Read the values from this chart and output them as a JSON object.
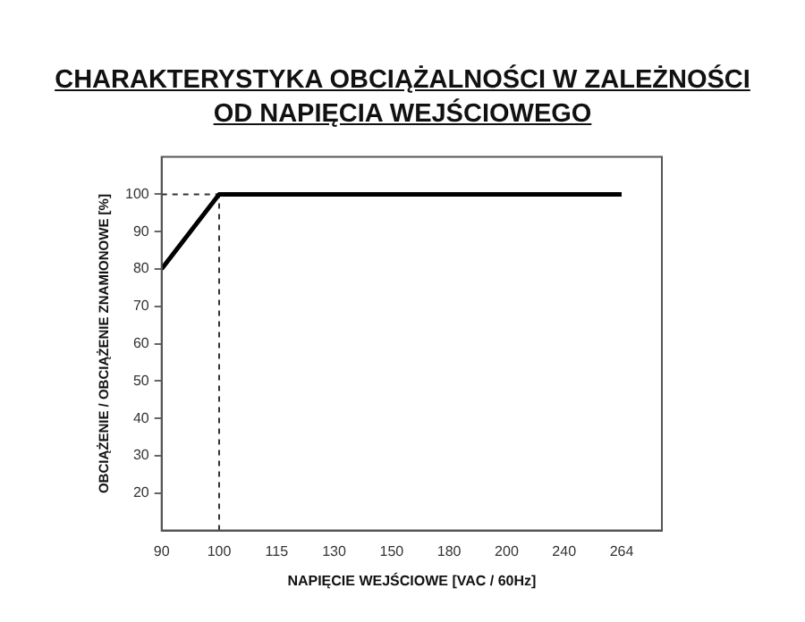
{
  "chart_data": {
    "type": "line",
    "title": "CHARAKTERYSTYKA OBCIĄŻALNOŚCI W ZALEŻNOŚCI OD NAPIĘCIA WEJŚCIOWEGO",
    "xlabel": "NAPIĘCIE WEJŚCIOWE [VAC / 60Hz]",
    "ylabel": "OBCIĄŻENIE / OBCIĄŻENIE ZNAMIONOWE [%]",
    "categories": [
      "90",
      "100",
      "115",
      "130",
      "150",
      "180",
      "200",
      "240",
      "264"
    ],
    "series": [
      {
        "color": "#000000",
        "values": [
          80,
          100,
          100,
          100,
          100,
          100,
          100,
          100,
          100
        ]
      }
    ],
    "ylim": [
      10,
      110
    ],
    "yticks": [
      20,
      30,
      40,
      50,
      60,
      70,
      80,
      90,
      100
    ],
    "ref_lines": [
      {
        "axis": "x",
        "value": "100",
        "color": "#333333",
        "line_style": "dashed"
      },
      {
        "axis": "y",
        "value": 100,
        "color": "#333333",
        "line_style": "dashed"
      }
    ],
    "grid": false,
    "legend": false,
    "marker": "none",
    "line_style": "solid"
  }
}
